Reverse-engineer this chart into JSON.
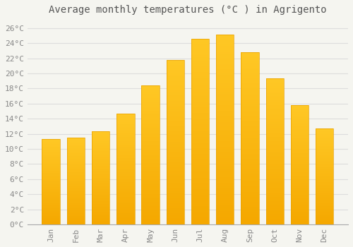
{
  "title": "Average monthly temperatures (°C ) in Agrigento",
  "months": [
    "Jan",
    "Feb",
    "Mar",
    "Apr",
    "May",
    "Jun",
    "Jul",
    "Aug",
    "Sep",
    "Oct",
    "Nov",
    "Dec"
  ],
  "values": [
    11.3,
    11.5,
    12.3,
    14.7,
    18.4,
    21.8,
    24.6,
    25.1,
    22.8,
    19.3,
    15.8,
    12.7
  ],
  "bar_color_top": "#FFC825",
  "bar_color_bottom": "#F5A800",
  "bar_edge_color": "#E8A000",
  "background_color": "#F5F5F0",
  "plot_bg_color": "#F5F5F0",
  "grid_color": "#DDDDDD",
  "ylim": [
    0,
    27
  ],
  "ytick_step": 2,
  "title_fontsize": 10,
  "tick_fontsize": 8,
  "title_color": "#555555",
  "tick_color": "#888888"
}
